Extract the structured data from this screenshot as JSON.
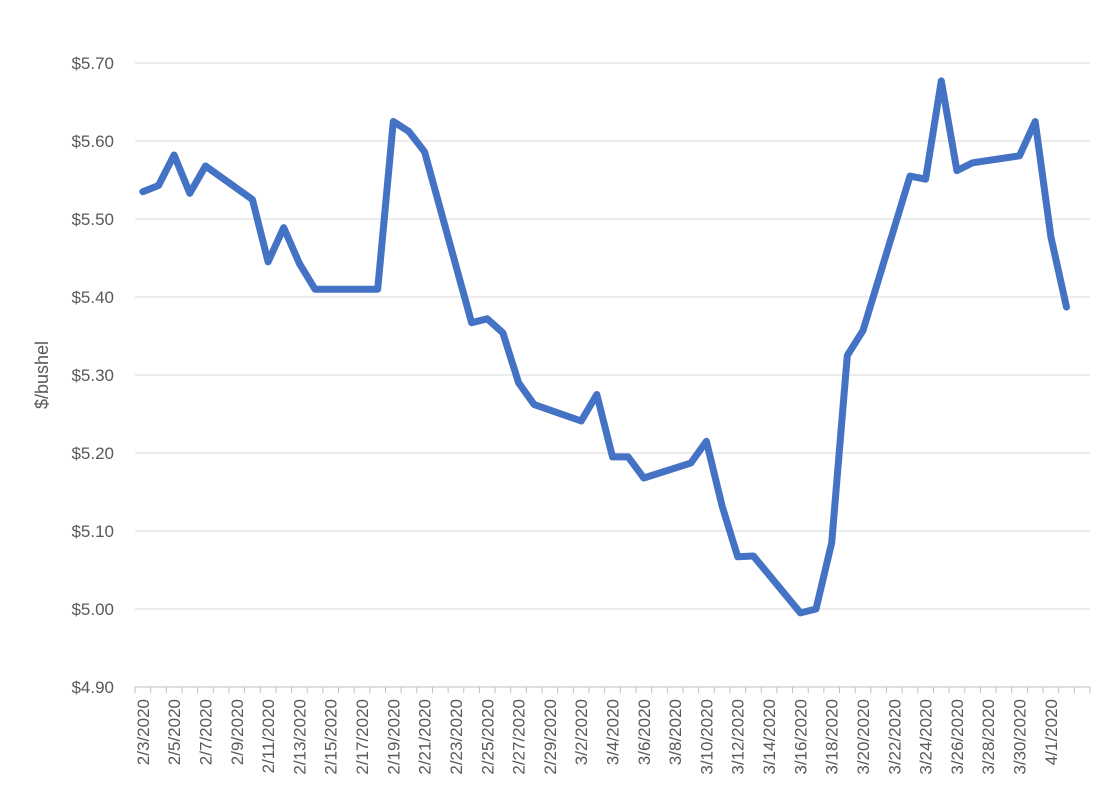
{
  "chart_data": {
    "type": "line",
    "title": "",
    "xlabel": "",
    "ylabel": "$/bushel",
    "ylim": [
      4.9,
      5.7
    ],
    "y_ticks": [
      4.9,
      5.0,
      5.1,
      5.2,
      5.3,
      5.4,
      5.5,
      5.6,
      5.7
    ],
    "y_tick_labels": [
      "$4.90",
      "$5.00",
      "$5.10",
      "$5.20",
      "$5.30",
      "$5.40",
      "$5.50",
      "$5.60",
      "$5.70"
    ],
    "x_range": [
      "2/3/2020",
      "4/3/2020"
    ],
    "x_tick_labels": [
      "2/3/2020",
      "2/5/2020",
      "2/7/2020",
      "2/9/2020",
      "2/11/2020",
      "2/13/2020",
      "2/15/2020",
      "2/17/2020",
      "2/19/2020",
      "2/21/2020",
      "2/23/2020",
      "2/25/2020",
      "2/27/2020",
      "2/29/2020",
      "3/2/2020",
      "3/4/2020",
      "3/6/2020",
      "3/8/2020",
      "3/10/2020",
      "3/12/2020",
      "3/14/2020",
      "3/16/2020",
      "3/18/2020",
      "3/20/2020",
      "3/22/2020",
      "3/24/2020",
      "3/26/2020",
      "3/28/2020",
      "3/30/2020",
      "4/1/2020"
    ],
    "grid": true,
    "legend": "none",
    "series_color": "#4472c4",
    "x": [
      "2/3/2020",
      "2/4/2020",
      "2/5/2020",
      "2/6/2020",
      "2/7/2020",
      "2/10/2020",
      "2/11/2020",
      "2/12/2020",
      "2/13/2020",
      "2/14/2020",
      "2/18/2020",
      "2/19/2020",
      "2/20/2020",
      "2/21/2020",
      "2/24/2020",
      "2/25/2020",
      "2/26/2020",
      "2/27/2020",
      "2/28/2020",
      "3/2/2020",
      "3/3/2020",
      "3/4/2020",
      "3/5/2020",
      "3/6/2020",
      "3/9/2020",
      "3/10/2020",
      "3/11/2020",
      "3/12/2020",
      "3/13/2020",
      "3/16/2020",
      "3/17/2020",
      "3/18/2020",
      "3/19/2020",
      "3/20/2020",
      "3/23/2020",
      "3/24/2020",
      "3/25/2020",
      "3/26/2020",
      "3/27/2020",
      "3/30/2020",
      "3/31/2020",
      "4/1/2020",
      "4/2/2020"
    ],
    "values": [
      5.535,
      5.543,
      5.582,
      5.533,
      5.568,
      5.525,
      5.445,
      5.489,
      5.443,
      5.41,
      5.41,
      5.625,
      5.612,
      5.586,
      5.367,
      5.372,
      5.354,
      5.29,
      5.262,
      5.241,
      5.275,
      5.195,
      5.195,
      5.168,
      5.187,
      5.215,
      5.132,
      5.067,
      5.068,
      4.995,
      5.0,
      5.085,
      5.325,
      5.357,
      5.555,
      5.551,
      5.677,
      5.562,
      5.572,
      5.581,
      5.625,
      5.477,
      5.387
    ]
  }
}
